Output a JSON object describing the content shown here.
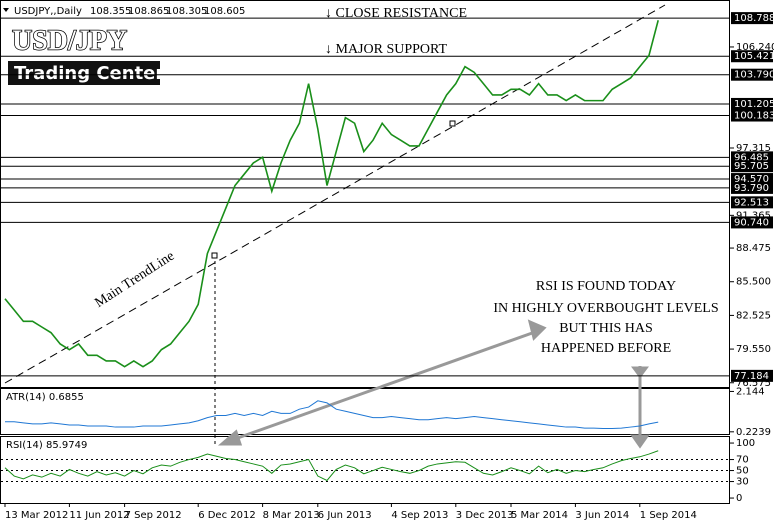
{
  "header": {
    "symbol": "USDJPY,,Daily",
    "open": 108.355,
    "high": 108.865,
    "low": 108.305,
    "close": 108.605
  },
  "logo": {
    "title": "USD/JPY",
    "subtitle": "Trading Center"
  },
  "annotations": {
    "resistance": "↓ CLOSE RESISTANCE",
    "support": "↓ MAJOR SUPPORT",
    "trendline": "Main TrendLine",
    "rsi_note": [
      "RSI IS FOUND TODAY",
      "IN HIGHLY OVERBOUGHT LEVELS",
      "BUT THIS HAS",
      "HAPPENED BEFORE"
    ]
  },
  "chart_data": [
    {
      "type": "line",
      "color": "#1a8f1a",
      "categories": [
        "13 Mar 2012",
        null,
        null,
        null,
        null,
        null,
        null,
        "11 Jun 2012",
        null,
        null,
        null,
        null,
        null,
        "7 Sep 2012",
        null,
        null,
        null,
        null,
        null,
        null,
        null,
        "6 Dec 2012",
        null,
        null,
        null,
        null,
        null,
        null,
        "8 Mar 2013",
        null,
        null,
        null,
        null,
        null,
        "6 Jun 2013",
        null,
        null,
        null,
        null,
        null,
        null,
        null,
        "4 Sep 2013",
        null,
        null,
        null,
        null,
        null,
        null,
        "3 Dec 2013",
        null,
        null,
        null,
        null,
        null,
        "5 Mar 2014",
        null,
        null,
        null,
        null,
        null,
        null,
        "3 Jun 2014",
        null,
        null,
        null,
        null,
        null,
        null,
        "1 Sep 2014",
        null,
        null
      ],
      "values": [
        84,
        83,
        82,
        82,
        81.5,
        81,
        80,
        79.5,
        80,
        79,
        79,
        78.5,
        78.5,
        78,
        78.5,
        78,
        78.5,
        79.5,
        80,
        81,
        82,
        83.5,
        88,
        90,
        92,
        94,
        95,
        96,
        96.5,
        93.5,
        96,
        98,
        99.5,
        103,
        99,
        94,
        97,
        100,
        99.5,
        97,
        98,
        99.5,
        98.5,
        98,
        97.5,
        97.5,
        99,
        100.5,
        102,
        103,
        104.5,
        104,
        103,
        102,
        102,
        102.5,
        102.5,
        102,
        103,
        102,
        102,
        101.5,
        102,
        101.5,
        101.5,
        101.5,
        102.5,
        103,
        103.5,
        104.5,
        105.5,
        108.6
      ],
      "ylim": [
        76.2,
        110.3
      ],
      "yticks": [
        {
          "value": 106.24,
          "label": "106.240"
        },
        97.315,
        91.365,
        88.475,
        {
          "value": 85.5,
          "label": "85.500"
        },
        82.525,
        {
          "value": 79.55,
          "label": "79.550"
        },
        76.575
      ],
      "levels": [
        108.788,
        105.421,
        {
          "value": 103.79,
          "label": "103.790"
        },
        101.205,
        100.183,
        96.485,
        95.705,
        {
          "value": 94.57,
          "label": "94.570"
        },
        {
          "value": 93.79,
          "label": "93.790"
        },
        92.513,
        {
          "value": 90.74,
          "label": "90.740"
        },
        77.184
      ]
    },
    {
      "type": "line",
      "title": "ATR(14) 0.6855",
      "color": "#1f77d4",
      "values": [
        0.7,
        0.7,
        0.65,
        0.6,
        0.6,
        0.65,
        0.6,
        0.55,
        0.55,
        0.5,
        0.5,
        0.5,
        0.45,
        0.45,
        0.45,
        0.5,
        0.5,
        0.5,
        0.55,
        0.6,
        0.65,
        0.75,
        0.9,
        1.0,
        1.0,
        1.1,
        1.0,
        1.1,
        1.0,
        1.2,
        1.1,
        1.1,
        1.3,
        1.4,
        1.7,
        1.6,
        1.3,
        1.2,
        1.1,
        1.0,
        0.9,
        0.9,
        0.95,
        0.9,
        0.85,
        0.8,
        0.8,
        0.85,
        0.9,
        0.85,
        0.9,
        0.95,
        0.9,
        0.85,
        0.8,
        0.75,
        0.7,
        0.65,
        0.6,
        0.55,
        0.5,
        0.45,
        0.45,
        0.4,
        0.4,
        0.38,
        0.38,
        0.4,
        0.45,
        0.5,
        0.6,
        0.6855
      ],
      "ylim": [
        0.12,
        2.26
      ],
      "yticks": [
        2.144,
        0.2239
      ]
    },
    {
      "type": "line",
      "title": "RSI(14) 85.9749",
      "color": "#1a8f1a",
      "values": [
        55,
        40,
        35,
        42,
        38,
        45,
        40,
        52,
        45,
        40,
        48,
        42,
        46,
        40,
        50,
        44,
        55,
        60,
        58,
        65,
        70,
        74,
        80,
        76,
        72,
        70,
        66,
        62,
        58,
        45,
        60,
        62,
        66,
        70,
        40,
        32,
        52,
        60,
        55,
        44,
        50,
        56,
        52,
        48,
        45,
        50,
        58,
        62,
        64,
        66,
        65,
        55,
        45,
        42,
        48,
        55,
        50,
        44,
        58,
        46,
        52,
        45,
        50,
        48,
        52,
        55,
        62,
        68,
        72,
        75,
        80,
        85.9749
      ],
      "ylim": [
        -9,
        111
      ],
      "yticks": [
        100,
        70,
        50,
        30,
        0
      ]
    }
  ]
}
